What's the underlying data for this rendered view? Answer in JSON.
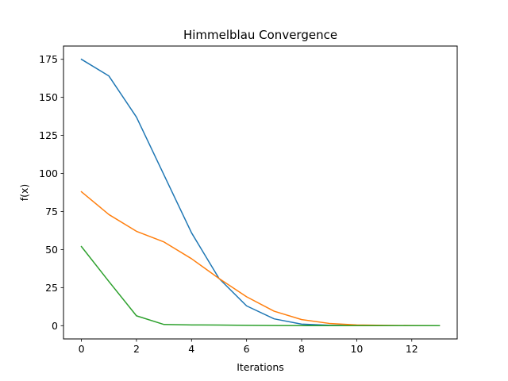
{
  "chart_data": {
    "type": "line",
    "title": "Himmelblau Convergence",
    "xlabel": "Iterations",
    "ylabel": "f(x)",
    "xlim": [
      -0.65,
      13.65
    ],
    "ylim": [
      -8.7,
      183.7
    ],
    "xticks": [
      0,
      2,
      4,
      6,
      8,
      10,
      12
    ],
    "yticks": [
      0,
      25,
      50,
      75,
      100,
      125,
      150,
      175
    ],
    "grid": false,
    "legend": "none",
    "x": [
      0,
      1,
      2,
      3,
      4,
      5,
      6,
      7,
      8,
      9,
      10,
      11,
      12,
      13
    ],
    "series": [
      {
        "color": "#1f77b4",
        "values": [
          175,
          164,
          137,
          99,
          61,
          31,
          13,
          4.5,
          1.0,
          0.3,
          0.1,
          0.05,
          0.02,
          0.01
        ]
      },
      {
        "color": "#ff7f0e",
        "values": [
          88,
          73,
          62,
          55,
          44,
          31,
          19,
          9.5,
          4.0,
          1.5,
          0.5,
          0.2,
          0.1,
          0.05
        ]
      },
      {
        "color": "#2ca02c",
        "values": [
          52,
          29,
          6.5,
          0.8,
          0.5,
          0.4,
          0.2,
          0.1,
          0.05,
          0.02,
          0.01,
          0.0,
          0.0,
          0.0
        ]
      }
    ]
  }
}
